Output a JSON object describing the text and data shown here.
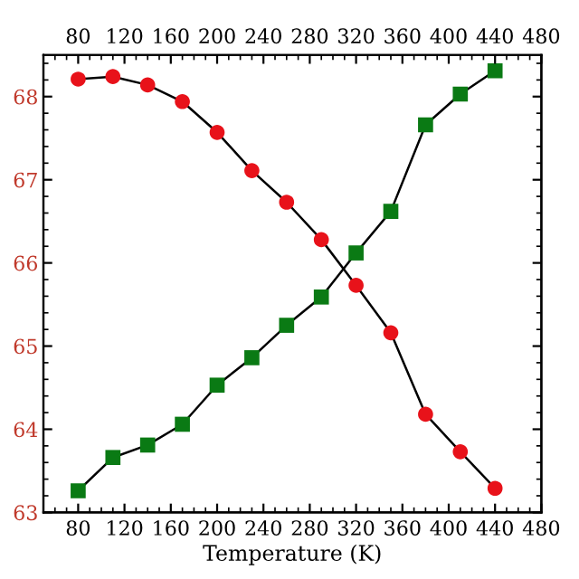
{
  "chart_data": {
    "type": "line",
    "xlabel": "Temperature (K)",
    "x": [
      80,
      110,
      140,
      170,
      200,
      230,
      260,
      290,
      320,
      350,
      380,
      410,
      440
    ],
    "series": [
      {
        "color": "#e8121a",
        "marker": "circle",
        "values": [
          68.21,
          68.24,
          68.14,
          67.94,
          67.57,
          67.11,
          66.73,
          66.28,
          65.73,
          65.16,
          64.18,
          63.73,
          63.29
        ]
      },
      {
        "color": "#0a7a14",
        "marker": "square",
        "values": [
          63.26,
          63.66,
          63.81,
          64.06,
          64.53,
          64.86,
          65.25,
          65.59,
          66.12,
          66.62,
          67.66,
          68.03,
          68.31
        ]
      }
    ],
    "xlim": [
      50,
      480
    ],
    "xticks": [
      80,
      120,
      160,
      200,
      240,
      280,
      320,
      360,
      400,
      440,
      480
    ],
    "x2lim": [
      50,
      480
    ],
    "x2ticks": [
      80,
      120,
      160,
      200,
      240,
      280,
      320,
      360,
      400,
      440,
      480
    ],
    "ylim": [
      63,
      68.5
    ],
    "yticks": [
      63,
      64,
      65,
      66,
      67,
      68
    ],
    "grid": false,
    "legend": false
  }
}
